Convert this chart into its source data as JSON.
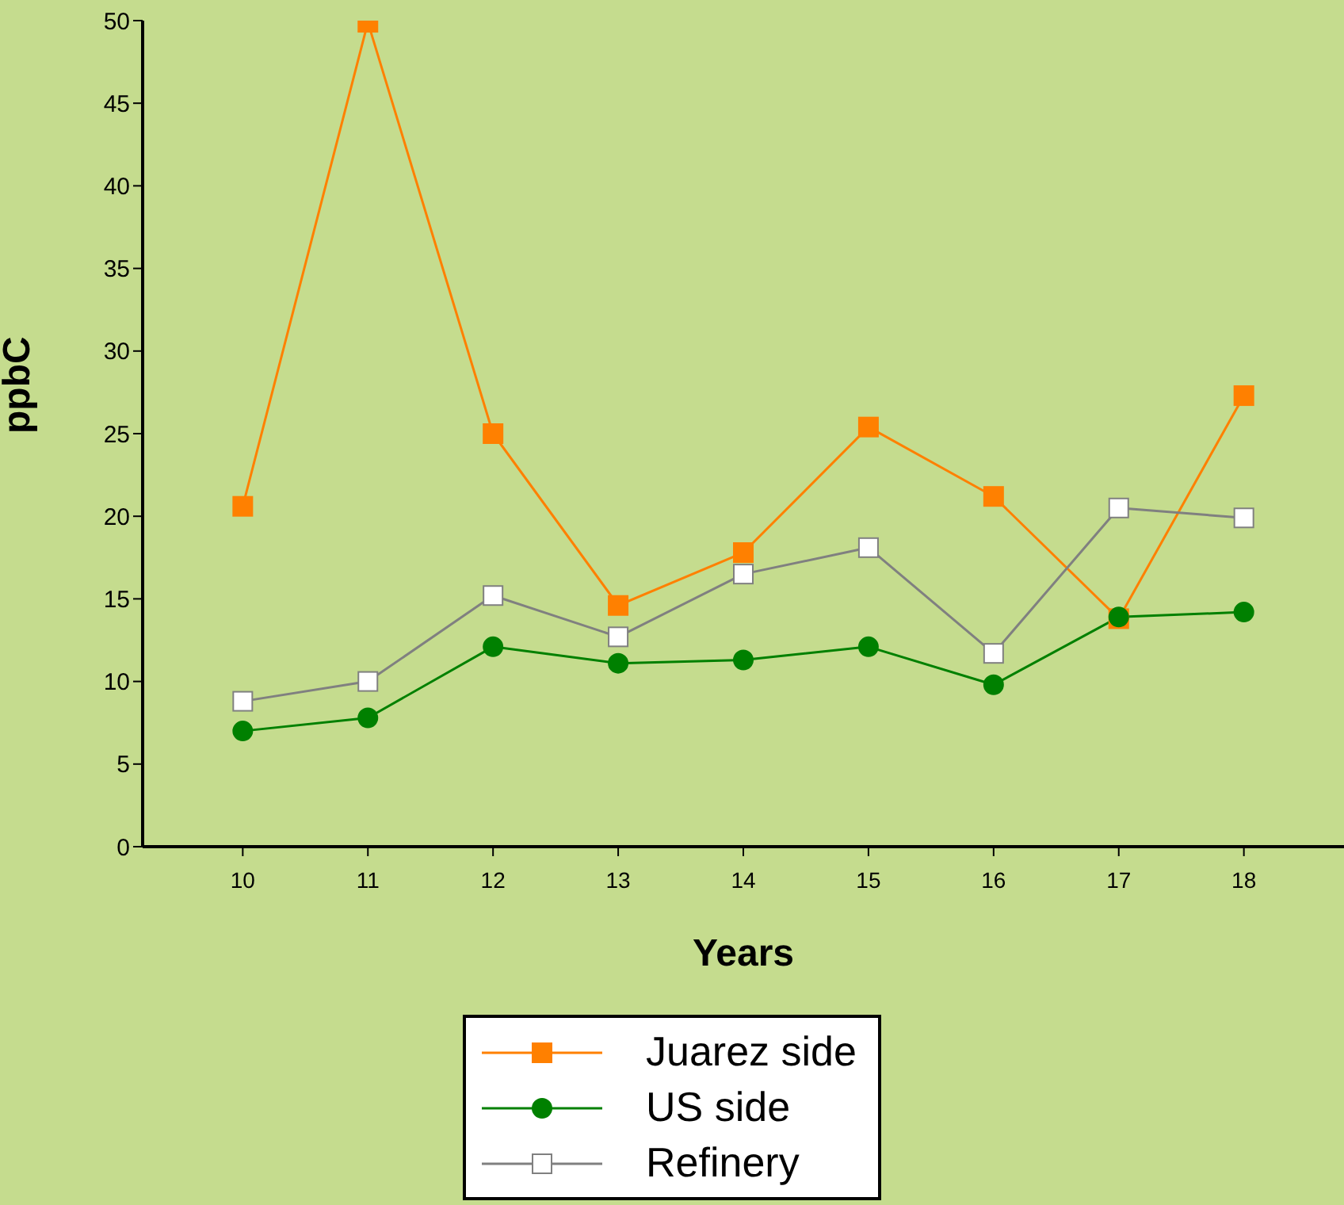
{
  "chart_data": {
    "type": "line",
    "xlabel": "Years",
    "ylabel": "ppbC",
    "x": [
      10,
      11,
      12,
      13,
      14,
      15,
      16,
      17,
      18
    ],
    "xlim": [
      9.2,
      18.8
    ],
    "xticks": [
      10,
      11,
      12,
      13,
      14,
      15,
      16,
      17,
      18
    ],
    "ylim": [
      0,
      50
    ],
    "yticks": [
      0,
      5,
      10,
      15,
      20,
      25,
      30,
      35,
      40,
      45,
      50
    ],
    "grid": false,
    "legend": "bottom",
    "line_style": "solid",
    "series": [
      {
        "name": "Juarez side",
        "color": "#ff8000",
        "marker": "square",
        "values": [
          20.6,
          49.9,
          25.0,
          14.6,
          17.8,
          25.4,
          21.2,
          13.8,
          27.3
        ]
      },
      {
        "name": "US side",
        "color": "#008000",
        "marker": "circle",
        "values": [
          7.0,
          7.8,
          12.1,
          11.1,
          11.3,
          12.1,
          9.8,
          13.9,
          14.2
        ]
      },
      {
        "name": "Refinery",
        "color": "#808080",
        "marker": "square",
        "values": [
          8.8,
          10.0,
          15.2,
          12.7,
          16.5,
          18.1,
          11.7,
          20.5,
          19.9
        ]
      }
    ]
  }
}
